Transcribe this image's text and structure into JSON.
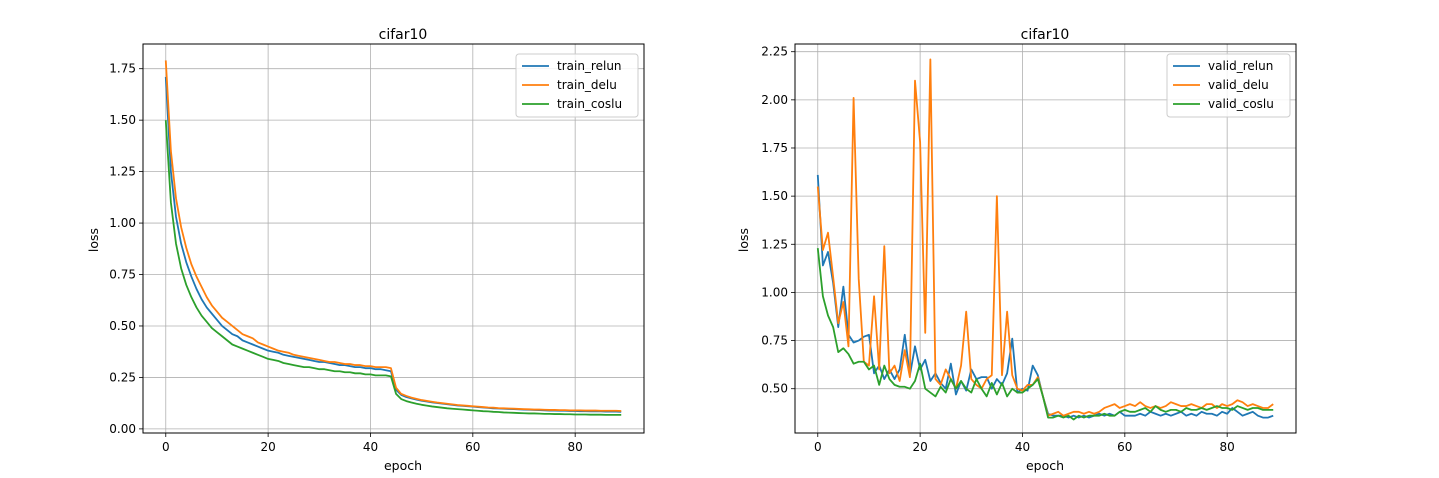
{
  "chart_data": [
    {
      "type": "line",
      "title": "cifar10",
      "xlabel": "epoch",
      "ylabel": "loss",
      "xlim": [
        -4.45,
        93.45
      ],
      "ylim": [
        -0.02,
        1.87
      ],
      "xticks": [
        0,
        20,
        40,
        60,
        80
      ],
      "xtick_labels": [
        "0",
        "20",
        "40",
        "60",
        "80"
      ],
      "yticks": [
        0.0,
        0.25,
        0.5,
        0.75,
        1.0,
        1.25,
        1.5,
        1.75
      ],
      "ytick_labels": [
        "0.00",
        "0.25",
        "0.50",
        "0.75",
        "1.00",
        "1.25",
        "1.50",
        "1.75"
      ],
      "grid": true,
      "legend_position": "top-right",
      "series": [
        {
          "name": "train_relun",
          "color": "#1f77b4",
          "values": [
            1.71,
            1.25,
            1.03,
            0.9,
            0.81,
            0.74,
            0.68,
            0.63,
            0.59,
            0.56,
            0.53,
            0.5,
            0.48,
            0.46,
            0.45,
            0.43,
            0.42,
            0.41,
            0.4,
            0.39,
            0.38,
            0.375,
            0.37,
            0.36,
            0.355,
            0.35,
            0.345,
            0.34,
            0.335,
            0.33,
            0.325,
            0.325,
            0.32,
            0.315,
            0.31,
            0.31,
            0.305,
            0.3,
            0.3,
            0.295,
            0.295,
            0.29,
            0.29,
            0.285,
            0.28,
            0.19,
            0.165,
            0.155,
            0.148,
            0.142,
            0.137,
            0.133,
            0.129,
            0.126,
            0.123,
            0.12,
            0.117,
            0.114,
            0.112,
            0.11,
            0.108,
            0.106,
            0.104,
            0.102,
            0.1,
            0.099,
            0.098,
            0.097,
            0.096,
            0.095,
            0.094,
            0.093,
            0.092,
            0.091,
            0.09,
            0.089,
            0.089,
            0.088,
            0.088,
            0.087,
            0.087,
            0.086,
            0.086,
            0.085,
            0.085,
            0.085,
            0.084,
            0.084,
            0.084,
            0.083
          ]
        },
        {
          "name": "train_delu",
          "color": "#ff7f0e",
          "values": [
            1.79,
            1.35,
            1.12,
            0.98,
            0.88,
            0.8,
            0.74,
            0.69,
            0.64,
            0.6,
            0.57,
            0.54,
            0.52,
            0.5,
            0.48,
            0.46,
            0.45,
            0.44,
            0.42,
            0.41,
            0.4,
            0.39,
            0.38,
            0.375,
            0.37,
            0.36,
            0.355,
            0.35,
            0.345,
            0.34,
            0.335,
            0.33,
            0.325,
            0.325,
            0.32,
            0.315,
            0.315,
            0.31,
            0.31,
            0.305,
            0.305,
            0.3,
            0.3,
            0.3,
            0.295,
            0.2,
            0.17,
            0.16,
            0.152,
            0.146,
            0.14,
            0.136,
            0.132,
            0.128,
            0.125,
            0.122,
            0.119,
            0.116,
            0.114,
            0.112,
            0.11,
            0.108,
            0.106,
            0.104,
            0.103,
            0.101,
            0.1,
            0.099,
            0.098,
            0.097,
            0.096,
            0.095,
            0.094,
            0.094,
            0.093,
            0.092,
            0.092,
            0.091,
            0.091,
            0.09,
            0.09,
            0.09,
            0.089,
            0.089,
            0.089,
            0.088,
            0.088,
            0.088,
            0.088,
            0.087
          ]
        },
        {
          "name": "train_coslu",
          "color": "#2ca02c",
          "values": [
            1.5,
            1.1,
            0.9,
            0.78,
            0.7,
            0.64,
            0.59,
            0.55,
            0.52,
            0.49,
            0.47,
            0.45,
            0.43,
            0.41,
            0.4,
            0.39,
            0.38,
            0.37,
            0.36,
            0.35,
            0.34,
            0.335,
            0.33,
            0.32,
            0.315,
            0.31,
            0.305,
            0.3,
            0.3,
            0.295,
            0.29,
            0.29,
            0.285,
            0.28,
            0.28,
            0.275,
            0.275,
            0.27,
            0.27,
            0.265,
            0.265,
            0.26,
            0.26,
            0.26,
            0.255,
            0.17,
            0.145,
            0.135,
            0.128,
            0.122,
            0.117,
            0.113,
            0.109,
            0.106,
            0.103,
            0.1,
            0.098,
            0.096,
            0.094,
            0.092,
            0.09,
            0.088,
            0.086,
            0.085,
            0.083,
            0.082,
            0.08,
            0.079,
            0.078,
            0.077,
            0.076,
            0.075,
            0.075,
            0.074,
            0.073,
            0.073,
            0.072,
            0.072,
            0.071,
            0.071,
            0.07,
            0.07,
            0.07,
            0.069,
            0.069,
            0.069,
            0.068,
            0.068,
            0.068,
            0.068
          ]
        }
      ]
    },
    {
      "type": "line",
      "title": "cifar10",
      "xlabel": "epoch",
      "ylabel": "loss",
      "xlim": [
        -4.45,
        93.45
      ],
      "ylim": [
        0.27,
        2.29
      ],
      "xticks": [
        0,
        20,
        40,
        60,
        80
      ],
      "xtick_labels": [
        "0",
        "20",
        "40",
        "60",
        "80"
      ],
      "yticks": [
        0.25,
        0.5,
        0.75,
        1.0,
        1.25,
        1.5,
        1.75,
        2.0,
        2.25
      ],
      "ytick_labels": [
        "0.25",
        "0.50",
        "0.75",
        "1.00",
        "1.25",
        "1.50",
        "1.75",
        "2.00",
        "2.25"
      ],
      "grid": true,
      "legend_position": "top-right",
      "series": [
        {
          "name": "valid_relun",
          "color": "#1f77b4",
          "values": [
            1.61,
            1.14,
            1.21,
            1.05,
            0.82,
            1.03,
            0.78,
            0.74,
            0.75,
            0.77,
            0.78,
            0.58,
            0.62,
            0.55,
            0.6,
            0.55,
            0.6,
            0.78,
            0.57,
            0.72,
            0.6,
            0.65,
            0.54,
            0.58,
            0.53,
            0.5,
            0.63,
            0.47,
            0.54,
            0.49,
            0.6,
            0.55,
            0.56,
            0.56,
            0.5,
            0.55,
            0.52,
            0.58,
            0.76,
            0.48,
            0.5,
            0.49,
            0.62,
            0.57,
            0.46,
            0.37,
            0.36,
            0.36,
            0.36,
            0.35,
            0.36,
            0.35,
            0.36,
            0.35,
            0.36,
            0.37,
            0.36,
            0.37,
            0.36,
            0.38,
            0.36,
            0.36,
            0.36,
            0.37,
            0.36,
            0.38,
            0.37,
            0.36,
            0.37,
            0.36,
            0.37,
            0.38,
            0.36,
            0.37,
            0.36,
            0.38,
            0.37,
            0.37,
            0.36,
            0.38,
            0.37,
            0.4,
            0.38,
            0.36,
            0.37,
            0.38,
            0.36,
            0.35,
            0.35,
            0.36
          ]
        },
        {
          "name": "valid_delu",
          "color": "#ff7f0e",
          "values": [
            1.55,
            1.22,
            1.31,
            1.08,
            0.84,
            0.95,
            0.72,
            2.01,
            1.07,
            0.64,
            0.62,
            0.98,
            0.6,
            1.24,
            0.58,
            0.62,
            0.54,
            0.7,
            0.56,
            2.1,
            1.78,
            0.79,
            2.21,
            0.55,
            0.52,
            0.6,
            0.55,
            0.5,
            0.62,
            0.9,
            0.55,
            0.52,
            0.5,
            0.55,
            0.57,
            1.5,
            0.57,
            0.9,
            0.57,
            0.5,
            0.49,
            0.52,
            0.52,
            0.56,
            0.46,
            0.36,
            0.37,
            0.38,
            0.36,
            0.37,
            0.38,
            0.38,
            0.37,
            0.38,
            0.37,
            0.38,
            0.4,
            0.41,
            0.42,
            0.4,
            0.41,
            0.42,
            0.41,
            0.43,
            0.41,
            0.4,
            0.41,
            0.4,
            0.41,
            0.43,
            0.42,
            0.41,
            0.41,
            0.42,
            0.41,
            0.4,
            0.42,
            0.42,
            0.4,
            0.42,
            0.41,
            0.42,
            0.44,
            0.43,
            0.41,
            0.42,
            0.41,
            0.4,
            0.4,
            0.42
          ]
        },
        {
          "name": "valid_coslu",
          "color": "#2ca02c",
          "values": [
            1.23,
            0.98,
            0.88,
            0.82,
            0.69,
            0.71,
            0.68,
            0.63,
            0.64,
            0.64,
            0.6,
            0.62,
            0.52,
            0.62,
            0.55,
            0.52,
            0.51,
            0.51,
            0.5,
            0.54,
            0.63,
            0.5,
            0.48,
            0.46,
            0.51,
            0.48,
            0.55,
            0.5,
            0.54,
            0.5,
            0.48,
            0.55,
            0.5,
            0.46,
            0.53,
            0.47,
            0.53,
            0.46,
            0.5,
            0.48,
            0.48,
            0.5,
            0.52,
            0.55,
            0.46,
            0.35,
            0.35,
            0.36,
            0.35,
            0.36,
            0.34,
            0.36,
            0.35,
            0.36,
            0.36,
            0.36,
            0.37,
            0.36,
            0.36,
            0.38,
            0.39,
            0.38,
            0.38,
            0.39,
            0.4,
            0.38,
            0.41,
            0.39,
            0.38,
            0.39,
            0.39,
            0.38,
            0.4,
            0.39,
            0.39,
            0.4,
            0.39,
            0.4,
            0.41,
            0.4,
            0.4,
            0.39,
            0.41,
            0.4,
            0.39,
            0.4,
            0.4,
            0.39,
            0.39,
            0.39
          ]
        }
      ]
    }
  ]
}
